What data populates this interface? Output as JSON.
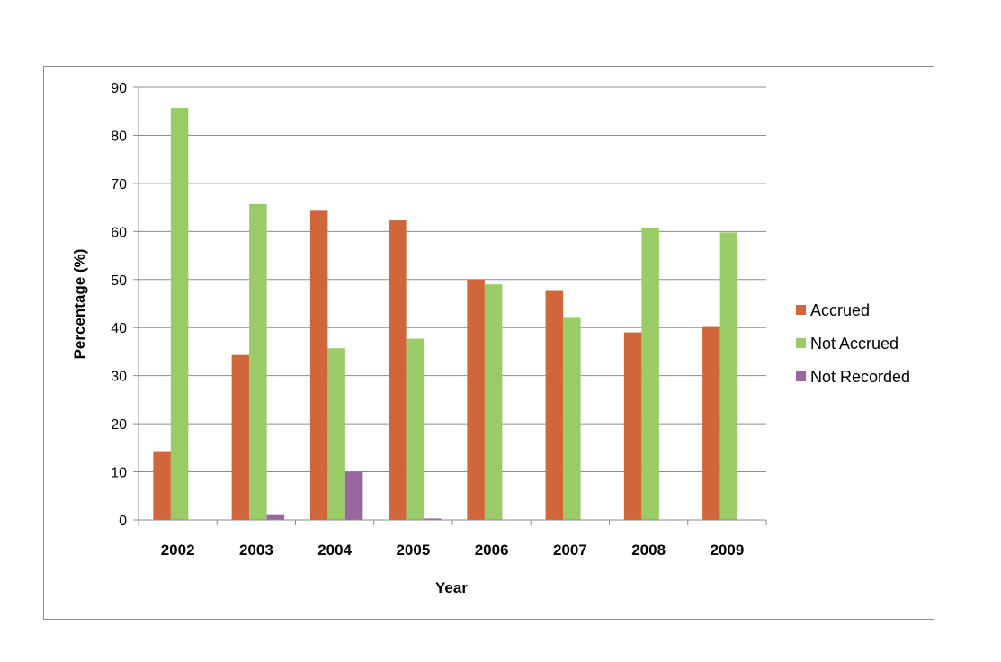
{
  "chart_data": {
    "type": "bar",
    "title": "",
    "xlabel": "Year",
    "ylabel": "Percentage (%)",
    "ylim": [
      0,
      90
    ],
    "yticks": [
      0,
      10,
      20,
      30,
      40,
      50,
      60,
      70,
      80,
      90
    ],
    "grid": true,
    "legend_position": "right",
    "categories": [
      "2002",
      "2003",
      "2004",
      "2005",
      "2006",
      "2007",
      "2008",
      "2009"
    ],
    "series": [
      {
        "name": "Accrued",
        "color": "#D0663A",
        "values": [
          14.3,
          34.3,
          64.3,
          62.3,
          50.0,
          47.8,
          39.0,
          40.3
        ]
      },
      {
        "name": "Not Accrued",
        "color": "#99CC66",
        "values": [
          85.7,
          65.7,
          35.7,
          37.7,
          49.0,
          42.2,
          60.8,
          59.8
        ]
      },
      {
        "name": "Not Recorded",
        "color": "#9966A0",
        "values": [
          0,
          1.0,
          10.0,
          0.3,
          0,
          0,
          0,
          0
        ]
      }
    ]
  }
}
